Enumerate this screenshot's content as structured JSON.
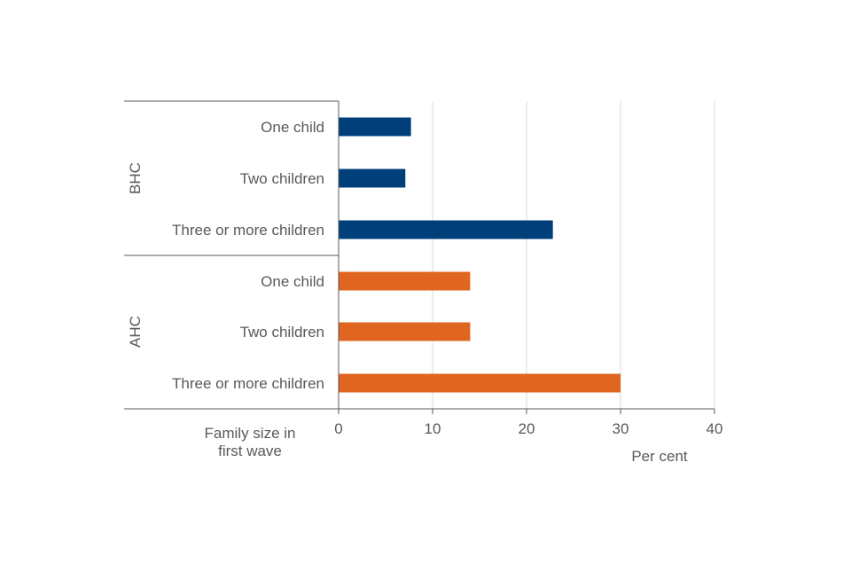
{
  "chart_data": {
    "type": "bar",
    "orientation": "horizontal",
    "groups": [
      {
        "label": "BHC",
        "color": "#003f7a",
        "categories": [
          "One child",
          "Two children",
          "Three or more children"
        ],
        "values": [
          7.7,
          7.1,
          22.8
        ]
      },
      {
        "label": "AHC",
        "color": "#e06520",
        "categories": [
          "One child",
          "Two children",
          "Three or more children"
        ],
        "values": [
          14.0,
          14.0,
          30.0
        ]
      }
    ],
    "xlim": [
      0,
      40
    ],
    "xticks": [
      "0",
      "10",
      "20",
      "30",
      "40"
    ],
    "xlabel": "Per cent",
    "category_axis_title": "Family size in first wave",
    "grid": "vertical",
    "legend": "none"
  },
  "colors": {
    "gridline": "#d9d9d9",
    "axis": "#595959",
    "text": "#595959"
  }
}
